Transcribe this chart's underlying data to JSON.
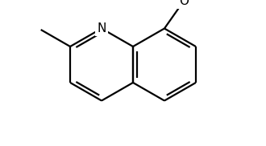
{
  "background_color": "#ffffff",
  "bond_color": "#000000",
  "line_width": 1.6,
  "font_size": 10,
  "figsize": [
    3.3,
    1.82
  ],
  "dpi": 100,
  "xlim": [
    0,
    330
  ],
  "ylim": [
    0,
    182
  ]
}
